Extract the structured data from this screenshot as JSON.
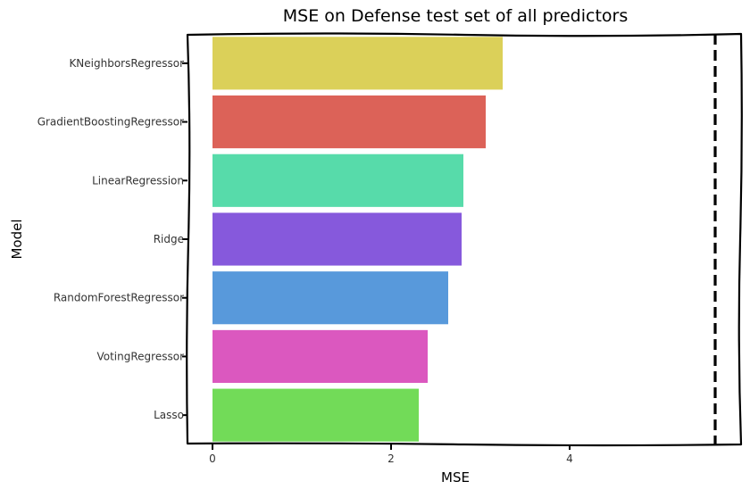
{
  "chart_data": {
    "type": "bar",
    "orientation": "horizontal",
    "title": "MSE on Defense test set of all predictors",
    "xlabel": "MSE",
    "ylabel": "Model",
    "categories": [
      "KNeighborsRegressor",
      "GradientBoostingRegressor",
      "LinearRegression",
      "Ridge",
      "RandomForestRegressor",
      "VotingRegressor",
      "Lasso"
    ],
    "values": [
      3.25,
      3.06,
      2.81,
      2.79,
      2.64,
      2.41,
      2.31
    ],
    "colors": [
      "#dbd059",
      "#dc6258",
      "#57dbaa",
      "#8659dc",
      "#5899db",
      "#db58bf",
      "#72db58"
    ],
    "xlim": [
      -0.28,
      5.92
    ],
    "xticks": [
      0,
      2,
      4
    ],
    "reference_line": {
      "x": 5.63,
      "style": "dashed",
      "color": "#000000"
    },
    "grid": false,
    "legend": "none"
  }
}
